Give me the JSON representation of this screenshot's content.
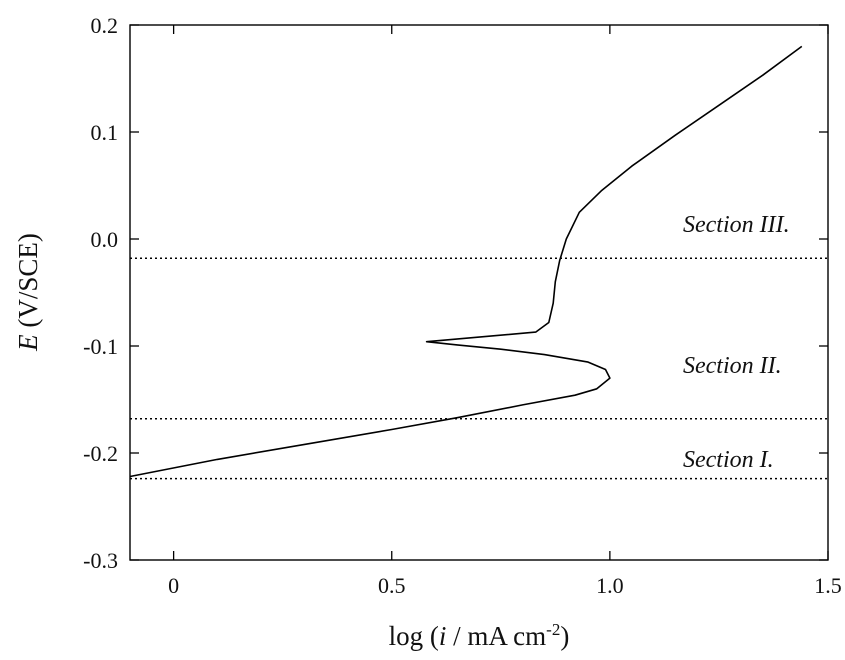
{
  "chart_data": {
    "type": "line",
    "xlabel_prefix": "log (",
    "xlabel_var": "i",
    "xlabel_unit": " / mA cm",
    "xlabel_exp": "-2",
    "xlabel_suffix": ")",
    "ylabel_var": "E",
    "ylabel_unit": " (V/SCE)",
    "xlim": [
      -0.1,
      1.5
    ],
    "ylim": [
      -0.3,
      0.2
    ],
    "x_ticks": [
      0,
      0.5,
      1.0,
      1.5
    ],
    "x_tick_labels": [
      "0",
      "0.5",
      "1.0",
      "1.5"
    ],
    "y_ticks": [
      -0.3,
      -0.2,
      -0.1,
      0.0,
      0.1,
      0.2
    ],
    "y_tick_labels": [
      "-0.3",
      "-0.2",
      "-0.1",
      "0.0",
      "0.1",
      "0.2"
    ],
    "series": [
      {
        "x": [
          -0.1,
          0.1,
          0.3,
          0.5,
          0.65,
          0.8,
          0.92,
          0.97,
          1.0,
          0.99,
          0.95,
          0.85,
          0.75,
          0.65,
          0.58,
          0.83,
          0.86,
          0.87,
          0.875,
          0.885,
          0.9,
          0.93,
          0.98,
          1.05,
          1.15,
          1.25,
          1.35,
          1.44
        ],
        "y": [
          -0.222,
          -0.206,
          -0.192,
          -0.178,
          -0.167,
          -0.155,
          -0.146,
          -0.14,
          -0.13,
          -0.122,
          -0.115,
          -0.108,
          -0.103,
          -0.099,
          -0.096,
          -0.087,
          -0.078,
          -0.06,
          -0.04,
          -0.02,
          0.0,
          0.025,
          0.045,
          0.068,
          0.097,
          0.125,
          0.153,
          0.18
        ]
      }
    ],
    "reference_lines": [
      {
        "y": -0.018,
        "label": "Section III."
      },
      {
        "y": -0.168,
        "label": "Section II."
      },
      {
        "y": -0.224,
        "label": "Section I."
      }
    ],
    "grid": false
  }
}
